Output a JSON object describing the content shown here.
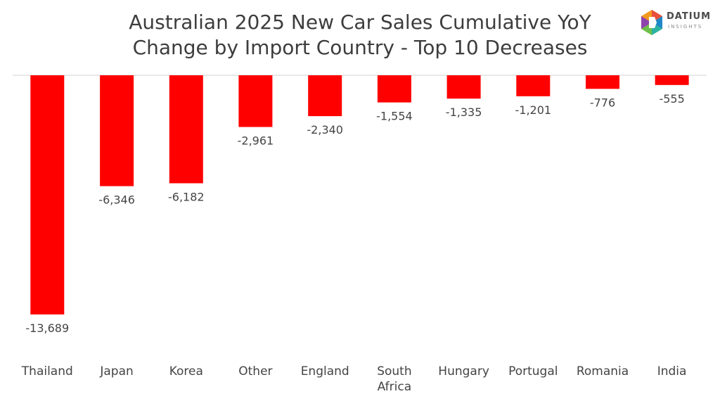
{
  "title_line1": "Australian 2025 New Car Sales Cumulative YoY",
  "title_line2": "Change by Import Country - Top 10 Decreases",
  "logo": {
    "name": "DATIUM",
    "sub": "INSIGHTS",
    "icon": "datium-logo-icon"
  },
  "chart_data": {
    "type": "bar",
    "title": "Australian 2025 New Car Sales Cumulative YoY Change by Import Country - Top 10 Decreases",
    "categories": [
      "Thailand",
      "Japan",
      "Korea",
      "Other",
      "England",
      "South Africa",
      "Hungary",
      "Portugal",
      "Romania",
      "India"
    ],
    "category_lines": [
      [
        "Thailand"
      ],
      [
        "Japan"
      ],
      [
        "Korea"
      ],
      [
        "Other"
      ],
      [
        "England"
      ],
      [
        "South",
        "Africa"
      ],
      [
        "Hungary"
      ],
      [
        "Portugal"
      ],
      [
        "Romania"
      ],
      [
        "India"
      ]
    ],
    "values": [
      -13689,
      -6346,
      -6182,
      -2961,
      -2340,
      -1554,
      -1335,
      -1201,
      -776,
      -555
    ],
    "value_labels": [
      "-13,689",
      "-6,346",
      "-6,182",
      "-2,961",
      "-2,340",
      "-1,554",
      "-1,335",
      "-1,201",
      "-776",
      "-555"
    ],
    "ylim": [
      -13689,
      0
    ],
    "bar_color": "#ff0000",
    "axis_color": "#d0d0d0",
    "grid": false,
    "legend": "none"
  }
}
